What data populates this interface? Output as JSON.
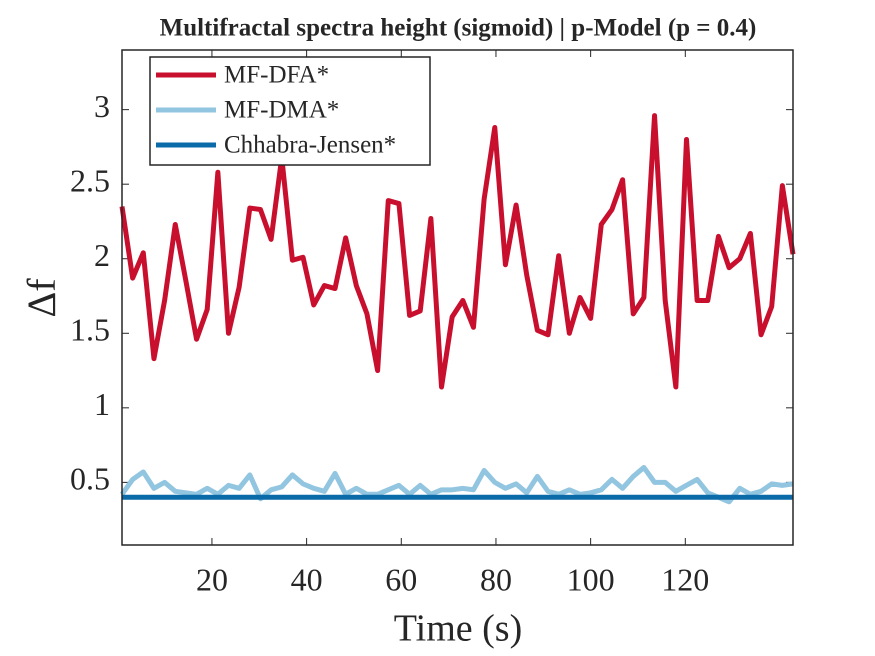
{
  "chart_data": {
    "type": "line",
    "title": "Multifractal spectra height (sigmoid) | p-Model (p = 0.4)",
    "xlabel": "Time (s)",
    "ylabel": "Δf",
    "x": [
      1,
      3.25,
      5.5,
      7.75,
      10,
      12.25,
      14.5,
      16.75,
      19,
      21.25,
      23.5,
      25.75,
      28,
      30.25,
      32.5,
      34.75,
      37,
      39.25,
      41.5,
      43.75,
      46,
      48.25,
      50.5,
      52.75,
      55,
      57.25,
      59.5,
      61.75,
      64,
      66.25,
      68.5,
      70.75,
      73,
      75.25,
      77.5,
      79.75,
      82,
      84.25,
      86.5,
      88.75,
      91,
      93.25,
      95.5,
      97.75,
      100,
      102.25,
      104.5,
      106.75,
      109,
      111.25,
      113.5,
      115.75,
      118,
      120.25,
      122.5,
      124.75,
      127,
      129.25,
      131.5,
      133.75,
      136,
      138.25,
      140.5,
      142.75
    ],
    "xlim": [
      1,
      142.75
    ],
    "xticks": [
      20,
      40,
      60,
      80,
      100,
      120
    ],
    "ylim": [
      0.08,
      3.4
    ],
    "yticks": [
      {
        "value": 0.5,
        "label": "0.5"
      },
      1,
      {
        "value": 1.5,
        "label": "1.5"
      },
      2,
      {
        "value": 2.5,
        "label": "2.5"
      },
      3
    ],
    "legend": "upper left",
    "grid": false,
    "series": [
      {
        "name": "MF-DFA*",
        "color": "#c8102e",
        "values": [
          2.35,
          1.87,
          2.04,
          1.33,
          1.72,
          2.23,
          1.85,
          1.46,
          1.66,
          2.58,
          1.5,
          1.81,
          2.34,
          2.33,
          2.13,
          2.68,
          1.99,
          2.01,
          1.69,
          1.82,
          1.8,
          2.14,
          1.82,
          1.63,
          1.25,
          2.39,
          2.37,
          1.62,
          1.65,
          2.27,
          1.14,
          1.61,
          1.72,
          1.54,
          2.4,
          2.88,
          1.96,
          2.36,
          1.89,
          1.52,
          1.49,
          2.02,
          1.5,
          1.74,
          1.6,
          2.23,
          2.33,
          2.53,
          1.63,
          1.74,
          2.96,
          1.72,
          1.14,
          2.8,
          1.72,
          1.72,
          2.15,
          1.94,
          2,
          2.17,
          1.49,
          1.68,
          2.49,
          2.03
        ]
      },
      {
        "name": "MF-DMA*",
        "color": "#92c5e0",
        "values": [
          0.42,
          0.52,
          0.57,
          0.46,
          0.5,
          0.44,
          0.43,
          0.42,
          0.46,
          0.42,
          0.48,
          0.46,
          0.55,
          0.39,
          0.45,
          0.47,
          0.55,
          0.49,
          0.46,
          0.44,
          0.56,
          0.42,
          0.46,
          0.42,
          0.42,
          0.45,
          0.48,
          0.42,
          0.48,
          0.42,
          0.45,
          0.45,
          0.46,
          0.45,
          0.58,
          0.5,
          0.46,
          0.49,
          0.43,
          0.54,
          0.44,
          0.42,
          0.45,
          0.42,
          0.43,
          0.45,
          0.52,
          0.46,
          0.54,
          0.6,
          0.5,
          0.5,
          0.44,
          0.48,
          0.52,
          0.43,
          0.4,
          0.37,
          0.46,
          0.42,
          0.44,
          0.49,
          0.48,
          0.49
        ]
      },
      {
        "name": "Chhabra-Jensen*",
        "color": "#0b6aa8",
        "values": [
          0.4,
          0.4,
          0.4,
          0.4,
          0.4,
          0.4,
          0.4,
          0.4,
          0.4,
          0.4,
          0.4,
          0.4,
          0.4,
          0.4,
          0.4,
          0.4,
          0.4,
          0.4,
          0.4,
          0.4,
          0.4,
          0.4,
          0.4,
          0.4,
          0.4,
          0.4,
          0.4,
          0.4,
          0.4,
          0.4,
          0.4,
          0.4,
          0.4,
          0.4,
          0.4,
          0.4,
          0.4,
          0.4,
          0.4,
          0.4,
          0.4,
          0.4,
          0.4,
          0.4,
          0.4,
          0.4,
          0.4,
          0.4,
          0.4,
          0.4,
          0.4,
          0.4,
          0.4,
          0.4,
          0.4,
          0.4,
          0.4,
          0.4,
          0.4,
          0.4,
          0.4,
          0.4,
          0.4,
          0.4
        ]
      }
    ]
  }
}
